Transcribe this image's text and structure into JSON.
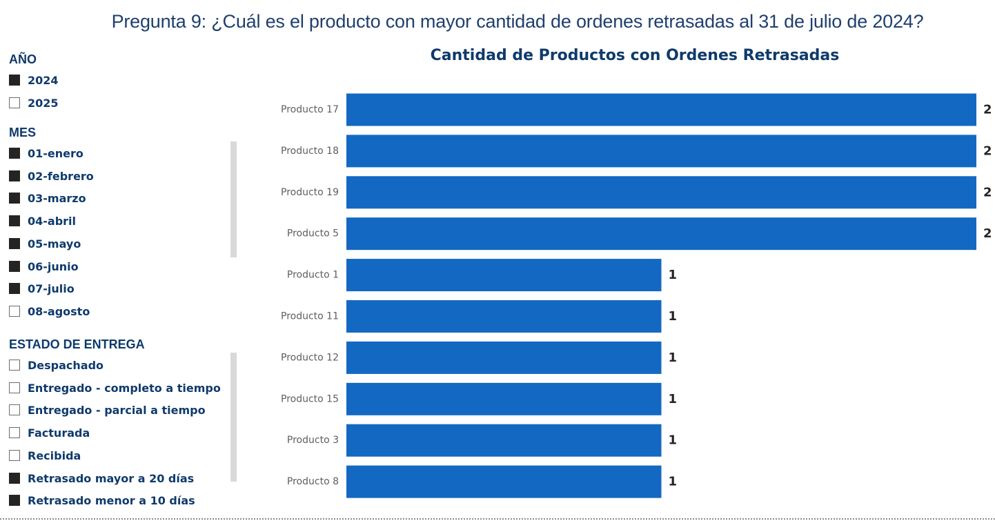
{
  "page_title": "Pregunta 9: ¿Cuál es el producto con mayor cantidad de ordenes retrasadas al 31 de julio de 2024?",
  "filters": {
    "year": {
      "header": "AÑO",
      "items": [
        {
          "label": "2024",
          "checked": true
        },
        {
          "label": "2025",
          "checked": false
        }
      ]
    },
    "month": {
      "header": "MES",
      "items": [
        {
          "label": "01-enero",
          "checked": true
        },
        {
          "label": "02-febrero",
          "checked": true
        },
        {
          "label": "03-marzo",
          "checked": true
        },
        {
          "label": "04-abril",
          "checked": true
        },
        {
          "label": "05-mayo",
          "checked": true
        },
        {
          "label": "06-junio",
          "checked": true
        },
        {
          "label": "07-julio",
          "checked": true
        },
        {
          "label": "08-agosto",
          "checked": false
        }
      ]
    },
    "status": {
      "header": "ESTADO DE ENTREGA",
      "items": [
        {
          "label": "Despachado",
          "checked": false
        },
        {
          "label": "Entregado - completo a tiempo",
          "checked": false
        },
        {
          "label": "Entregado - parcial a tiempo",
          "checked": false
        },
        {
          "label": "Facturada",
          "checked": false
        },
        {
          "label": "Recibida",
          "checked": false
        },
        {
          "label": "Retrasado mayor a 20 días",
          "checked": true
        },
        {
          "label": "Retrasado menor a 10 días",
          "checked": true
        }
      ]
    }
  },
  "colors": {
    "bar": "#1368c2",
    "title": "#0f3a6b",
    "checked": "#252423"
  },
  "chart_data": {
    "type": "bar",
    "orientation": "horizontal",
    "title": "Cantidad de Productos con Ordenes Retrasadas",
    "xlabel": "",
    "ylabel": "",
    "categories": [
      "Producto 17",
      "Producto 18",
      "Producto 19",
      "Producto 5",
      "Producto 1",
      "Producto 11",
      "Producto 12",
      "Producto 15",
      "Producto 3",
      "Producto 8"
    ],
    "values": [
      2,
      2,
      2,
      2,
      1,
      1,
      1,
      1,
      1,
      1
    ],
    "xlim": [
      0,
      2
    ],
    "grid": false,
    "data_labels": true
  }
}
